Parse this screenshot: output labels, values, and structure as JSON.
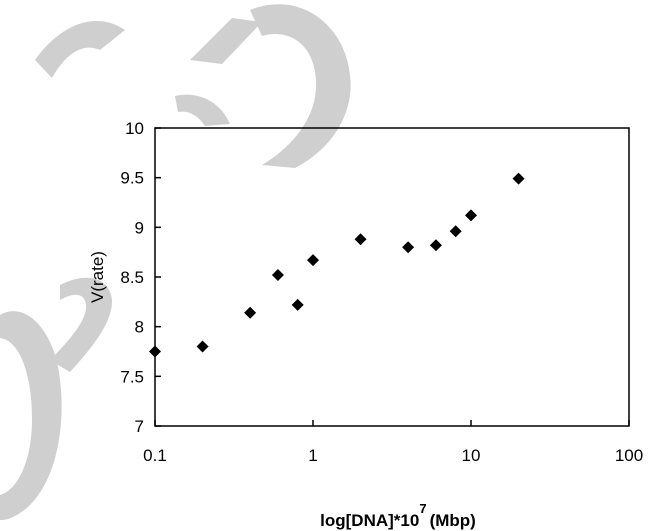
{
  "chart_data": {
    "type": "scatter",
    "xscale": "log",
    "xlim": [
      0.1,
      100
    ],
    "ylim": [
      7,
      10
    ],
    "grid": false,
    "legend": false,
    "marker": "diamond",
    "marker_color": "#000000",
    "xlabel_main": "log[DNA]*10",
    "xlabel_sup": "7",
    "xlabel_tail": "(Mbp)",
    "ylabel": "V(rate)",
    "x_ticks": [
      "0.1",
      "1",
      "10",
      "100"
    ],
    "y_ticks": [
      "10",
      "9.5",
      "9",
      "8.5",
      "8",
      "7.5",
      "7"
    ],
    "points": [
      {
        "x": 0.1,
        "y": 7.75
      },
      {
        "x": 0.2,
        "y": 7.8
      },
      {
        "x": 0.4,
        "y": 8.14
      },
      {
        "x": 0.6,
        "y": 8.52
      },
      {
        "x": 0.8,
        "y": 8.22
      },
      {
        "x": 1,
        "y": 8.67
      },
      {
        "x": 2,
        "y": 8.88
      },
      {
        "x": 4,
        "y": 8.8
      },
      {
        "x": 6,
        "y": 8.82
      },
      {
        "x": 8,
        "y": 8.96
      },
      {
        "x": 10,
        "y": 9.12
      },
      {
        "x": 20,
        "y": 9.49
      }
    ]
  },
  "watermark_color": "#cfcfcf"
}
